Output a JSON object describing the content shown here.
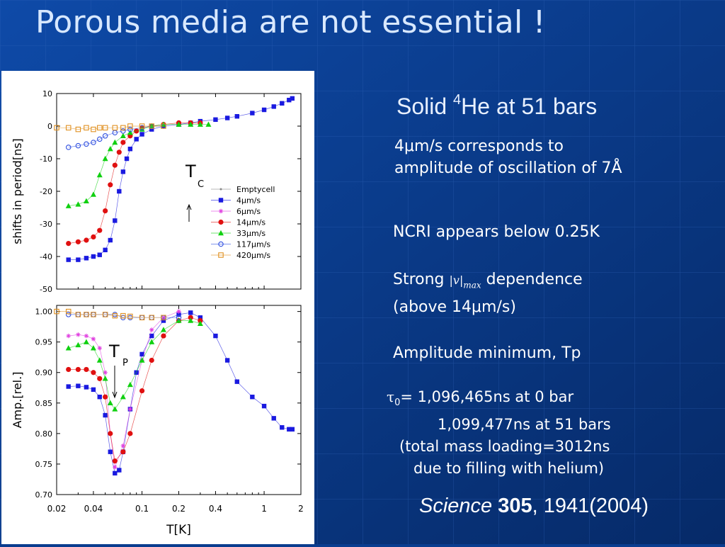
{
  "slide": {
    "title": "Porous media are not essential !",
    "solid_text": "Solid ",
    "solid_sup": "4",
    "solid_rest": "He at 51 bars",
    "note1_line1": "4μm/s corresponds to",
    "note1_line2": "amplitude of oscillation of 7Å",
    "ncri": "NCRI appears below 0.25K",
    "strong_a": "Strong ",
    "strong_v": "|v|",
    "strong_max": "max",
    "strong_b": " dependence",
    "strong_c": "(above 14μm/s)",
    "amp_min": "Amplitude minimum, Tp",
    "tau_symbol": "τ",
    "tau_sub": "0",
    "tau_line1": "= 1,096,465ns at 0 bar",
    "tau_line2": "1,099,477ns at 51 bars",
    "tau_line3": "(total mass loading=3012ns",
    "tau_line4": "due to filling with helium)",
    "ref_journal": "Science",
    "ref_volume": "305",
    "ref_rest": ", 1941(2004)"
  },
  "colors": {
    "background": "#0a3d8f",
    "grid": "#2b5db0"
  },
  "chart_data": [
    {
      "type": "scatter",
      "xscale": "log",
      "xlim": [
        0.02,
        2
      ],
      "ylim": [
        -50,
        10
      ],
      "ylabel": "shifts in period[ns]",
      "yticks": [
        10,
        0,
        -10,
        -20,
        -30,
        -40,
        -50
      ],
      "annotation": "Tc",
      "legend": "center-right",
      "series": [
        {
          "name": "Emptycell",
          "color": "#888888",
          "marker": "dot",
          "x": [],
          "y": []
        },
        {
          "name": "4μm/s",
          "color": "#1a1ae0",
          "marker": "square",
          "x": [
            0.025,
            0.03,
            0.035,
            0.04,
            0.045,
            0.05,
            0.055,
            0.06,
            0.065,
            0.07,
            0.075,
            0.08,
            0.09,
            0.1,
            0.12,
            0.15,
            0.2,
            0.25,
            0.3,
            0.4,
            0.5,
            0.6,
            0.8,
            1.0,
            1.2,
            1.4,
            1.6,
            1.7
          ],
          "y": [
            -41,
            -41,
            -40.5,
            -40,
            -39.5,
            -38,
            -35,
            -29,
            -20,
            -14,
            -10,
            -7,
            -4,
            -2.5,
            -1,
            0,
            0.5,
            1,
            1.5,
            2,
            2.5,
            3,
            4,
            5,
            6,
            7,
            8,
            8.5
          ]
        },
        {
          "name": "6μm/s",
          "color": "#e040e0",
          "marker": "asterisk",
          "x": [],
          "y": []
        },
        {
          "name": "14μm/s",
          "color": "#e01010",
          "marker": "circle",
          "x": [
            0.025,
            0.03,
            0.035,
            0.04,
            0.045,
            0.05,
            0.055,
            0.06,
            0.065,
            0.07,
            0.08,
            0.09,
            0.1,
            0.12,
            0.15,
            0.2,
            0.25,
            0.3
          ],
          "y": [
            -36,
            -35.5,
            -35,
            -34,
            -32,
            -26,
            -18,
            -12,
            -8,
            -5,
            -3,
            -1.5,
            -0.5,
            0,
            0.5,
            1,
            1,
            1
          ]
        },
        {
          "name": "33μm/s",
          "color": "#10d010",
          "marker": "triangle",
          "x": [
            0.025,
            0.03,
            0.035,
            0.04,
            0.045,
            0.05,
            0.055,
            0.06,
            0.07,
            0.08,
            0.1,
            0.12,
            0.15,
            0.2,
            0.25,
            0.3,
            0.35
          ],
          "y": [
            -24.5,
            -24,
            -23,
            -21,
            -15,
            -10,
            -7,
            -5,
            -3,
            -2,
            -1,
            0,
            0.5,
            0.5,
            0.5,
            0.5,
            0.5
          ]
        },
        {
          "name": "117μm/s",
          "color": "#3050e0",
          "marker": "open-circle",
          "x": [
            0.025,
            0.03,
            0.035,
            0.04,
            0.045,
            0.05,
            0.06,
            0.07,
            0.08,
            0.1,
            0.12,
            0.15
          ],
          "y": [
            -6.5,
            -6,
            -5.5,
            -5,
            -4,
            -3,
            -2,
            -1.5,
            -1,
            -0.5,
            0,
            0
          ]
        },
        {
          "name": "420μm/s",
          "color": "#e09020",
          "marker": "open-square",
          "x": [
            0.02,
            0.025,
            0.03,
            0.035,
            0.04,
            0.045,
            0.05,
            0.06,
            0.07,
            0.08,
            0.1,
            0.12,
            0.15
          ],
          "y": [
            -0.5,
            -0.5,
            -1,
            -0.5,
            -1,
            -0.5,
            -0.5,
            -0.5,
            -0.5,
            0,
            0,
            0,
            0
          ]
        }
      ]
    },
    {
      "type": "scatter",
      "xscale": "log",
      "xlim": [
        0.02,
        2
      ],
      "ylim": [
        0.7,
        1.01
      ],
      "xlabel": "T[K]",
      "ylabel": "Amp.[rel.]",
      "xticks": [
        "0.02",
        "0.04",
        "0.1",
        "0.2",
        "0.4",
        "1",
        "2"
      ],
      "yticks": [
        "1.00",
        "0.95",
        "0.90",
        "0.85",
        "0.80",
        "0.75",
        "0.70"
      ],
      "annotation": "Tp",
      "series": [
        {
          "name": "4μm/s",
          "color": "#1a1ae0",
          "marker": "square",
          "x": [
            0.025,
            0.03,
            0.035,
            0.04,
            0.045,
            0.05,
            0.055,
            0.06,
            0.065,
            0.07,
            0.08,
            0.09,
            0.1,
            0.12,
            0.15,
            0.2,
            0.25,
            0.3,
            0.4,
            0.5,
            0.6,
            0.8,
            1.0,
            1.2,
            1.4,
            1.6,
            1.7
          ],
          "y": [
            0.877,
            0.878,
            0.876,
            0.872,
            0.86,
            0.83,
            0.77,
            0.735,
            0.74,
            0.77,
            0.84,
            0.9,
            0.93,
            0.96,
            0.985,
            0.995,
            0.998,
            0.99,
            0.96,
            0.92,
            0.885,
            0.86,
            0.845,
            0.825,
            0.81,
            0.807,
            0.807
          ]
        },
        {
          "name": "6μm/s",
          "color": "#e040e0",
          "marker": "asterisk",
          "x": [
            0.025,
            0.03,
            0.035,
            0.04,
            0.045,
            0.05,
            0.055,
            0.06,
            0.07,
            0.08,
            0.1,
            0.12,
            0.15,
            0.2
          ],
          "y": [
            0.96,
            0.962,
            0.96,
            0.955,
            0.94,
            0.9,
            0.8,
            0.745,
            0.78,
            0.84,
            0.92,
            0.97,
            0.99,
            1.0
          ]
        },
        {
          "name": "14μm/s",
          "color": "#e01010",
          "marker": "circle",
          "x": [
            0.025,
            0.03,
            0.035,
            0.04,
            0.045,
            0.05,
            0.055,
            0.06,
            0.07,
            0.08,
            0.1,
            0.12,
            0.15,
            0.2,
            0.25,
            0.3
          ],
          "y": [
            0.905,
            0.905,
            0.905,
            0.9,
            0.89,
            0.86,
            0.8,
            0.755,
            0.77,
            0.8,
            0.87,
            0.92,
            0.96,
            0.985,
            0.99,
            0.985
          ]
        },
        {
          "name": "33μm/s",
          "color": "#10d010",
          "marker": "triangle",
          "x": [
            0.025,
            0.03,
            0.035,
            0.04,
            0.045,
            0.05,
            0.055,
            0.06,
            0.07,
            0.08,
            0.1,
            0.12,
            0.15,
            0.2,
            0.25,
            0.3
          ],
          "y": [
            0.94,
            0.945,
            0.95,
            0.94,
            0.92,
            0.89,
            0.85,
            0.84,
            0.86,
            0.88,
            0.92,
            0.95,
            0.97,
            0.985,
            0.985,
            0.98
          ]
        },
        {
          "name": "117μm/s",
          "color": "#3050e0",
          "marker": "open-circle",
          "x": [
            0.025,
            0.03,
            0.035,
            0.04,
            0.05,
            0.06,
            0.07,
            0.08,
            0.1,
            0.12,
            0.15,
            0.2
          ],
          "y": [
            0.995,
            0.995,
            0.995,
            0.995,
            0.995,
            0.995,
            0.99,
            0.99,
            0.99,
            0.99,
            0.99,
            0.99
          ]
        },
        {
          "name": "420μm/s",
          "color": "#e09020",
          "marker": "open-square",
          "x": [
            0.02,
            0.025,
            0.03,
            0.035,
            0.04,
            0.05,
            0.06,
            0.07,
            0.08,
            0.1,
            0.12,
            0.15
          ],
          "y": [
            1.0,
            1.0,
            0.995,
            0.995,
            0.995,
            0.995,
            0.993,
            0.993,
            0.992,
            0.99,
            0.99,
            0.99
          ]
        }
      ]
    }
  ]
}
